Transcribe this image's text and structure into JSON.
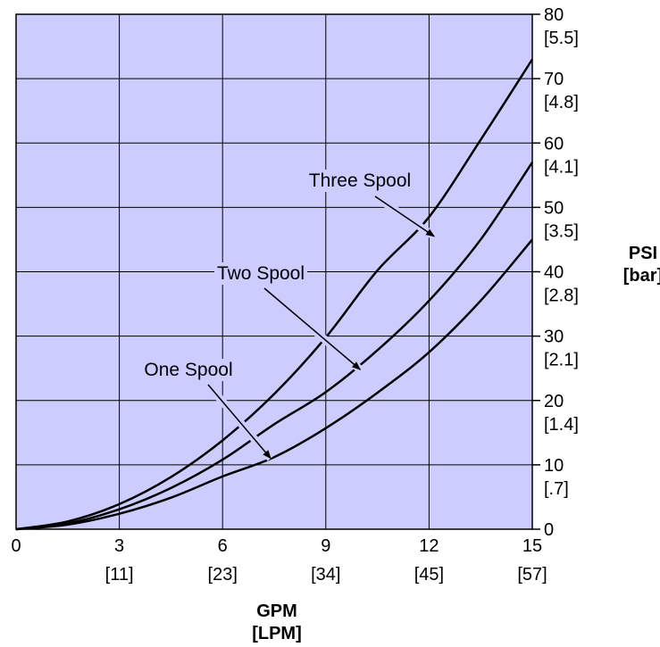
{
  "chart_data": {
    "type": "line",
    "xlabel": "GPM",
    "xlabel_alt": "[LPM]",
    "ylabel": "PSI",
    "ylabel_alt": "[bar]",
    "xlim": [
      0,
      15
    ],
    "ylim": [
      0,
      80
    ],
    "grid": true,
    "plot_background": "#ccccff",
    "x_ticks": [
      {
        "value": 0,
        "label": "0",
        "alt": ""
      },
      {
        "value": 3,
        "label": "3",
        "alt": "[11]"
      },
      {
        "value": 6,
        "label": "6",
        "alt": "[23]"
      },
      {
        "value": 9,
        "label": "9",
        "alt": "[34]"
      },
      {
        "value": 12,
        "label": "12",
        "alt": "[45]"
      },
      {
        "value": 15,
        "label": "15",
        "alt": "[57]"
      }
    ],
    "y_ticks": [
      {
        "value": 0,
        "label": "0",
        "alt": ""
      },
      {
        "value": 10,
        "label": "10",
        "alt": "[.7]"
      },
      {
        "value": 20,
        "label": "20",
        "alt": "[1.4]"
      },
      {
        "value": 30,
        "label": "30",
        "alt": "[2.1]"
      },
      {
        "value": 40,
        "label": "40",
        "alt": "[2.8]"
      },
      {
        "value": 50,
        "label": "50",
        "alt": "[3.5]"
      },
      {
        "value": 60,
        "label": "60",
        "alt": "[4.1]"
      },
      {
        "value": 70,
        "label": "70",
        "alt": "[4.8]"
      },
      {
        "value": 80,
        "label": "80",
        "alt": "[5.5]"
      }
    ],
    "series": [
      {
        "name": "Three Spool",
        "x": [
          0,
          1.5,
          3,
          4.5,
          6,
          7.5,
          9,
          10.5,
          12,
          13.5,
          15
        ],
        "y": [
          0,
          1.2,
          3.9,
          8.1,
          13.8,
          21,
          29.8,
          40.2,
          48.5,
          60.5,
          73
        ]
      },
      {
        "name": "Two Spool",
        "x": [
          0,
          1.5,
          3,
          4.5,
          6,
          7.5,
          9,
          10.5,
          12,
          13.5,
          15
        ],
        "y": [
          0,
          0.9,
          3.1,
          6.4,
          10.8,
          16.3,
          21.3,
          27.8,
          35.5,
          45,
          57
        ]
      },
      {
        "name": "One Spool",
        "x": [
          0,
          1.5,
          3,
          4.5,
          6,
          7.5,
          9,
          10.5,
          12,
          13.5,
          15
        ],
        "y": [
          0,
          0.7,
          2.4,
          4.9,
          8.2,
          11.2,
          15.7,
          21.2,
          27.5,
          35.5,
          45
        ]
      }
    ],
    "annotations": [
      {
        "text": "Three Spool",
        "arrow_to_series": "Three Spool",
        "arrow_to": [
          12.15,
          45.5
        ]
      },
      {
        "text": "Two Spool",
        "arrow_to_series": "Two Spool",
        "arrow_to": [
          10,
          24.8
        ]
      },
      {
        "text": "One Spool",
        "arrow_to_series": "One Spool",
        "arrow_to": [
          7.4,
          11
        ]
      }
    ]
  }
}
